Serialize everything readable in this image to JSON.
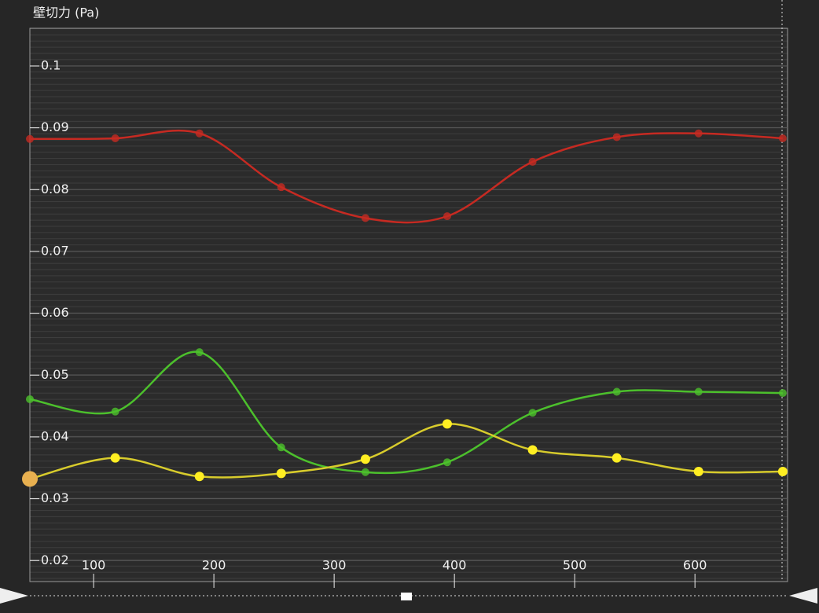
{
  "chart_data": {
    "type": "line",
    "title": "壁切力 (Pa)",
    "x": [
      47,
      118,
      188,
      256,
      326,
      394,
      465,
      535,
      603,
      673
    ],
    "series": [
      {
        "name": "red",
        "color": "#c62a22",
        "values": [
          0.0882,
          0.0883,
          0.0891,
          0.0804,
          0.0754,
          0.0757,
          0.0845,
          0.0885,
          0.0891,
          0.0883
        ]
      },
      {
        "name": "green",
        "color": "#4cc02c",
        "values": [
          0.0461,
          0.0441,
          0.0537,
          0.0383,
          0.0343,
          0.0359,
          0.0439,
          0.0473,
          0.0473,
          0.0471
        ]
      },
      {
        "name": "yellow",
        "color": "#d8cc2c",
        "values": [
          0.0332,
          0.0366,
          0.0336,
          0.0341,
          0.0364,
          0.0421,
          0.0379,
          0.0366,
          0.0344,
          0.0344
        ]
      }
    ],
    "xlim": [
      47,
      677
    ],
    "xticks": [
      100,
      200,
      300,
      400,
      500,
      600
    ],
    "ylim": [
      0.0166,
      0.1061
    ],
    "yticks": [
      0.02,
      0.03,
      0.04,
      0.05,
      0.06,
      0.07,
      0.08,
      0.09,
      0.1
    ],
    "grid": true
  }
}
